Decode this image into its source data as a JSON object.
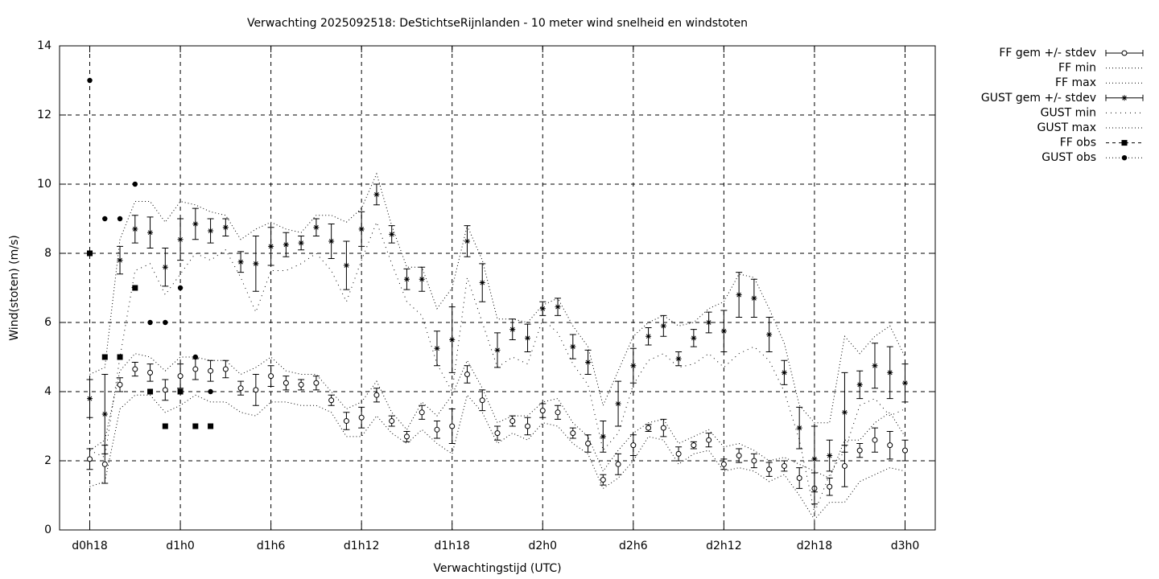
{
  "chart_data": {
    "type": "errorbar",
    "title": "Verwachting 2025092518: DeStichtseRijnlanden - 10 meter wind snelheid en windstoten",
    "x_label": "Verwachtingstijd (UTC)",
    "y_label": "Wind(stoten) (m/s)",
    "x": [
      18,
      19,
      20,
      21,
      22,
      23,
      24,
      25,
      26,
      27,
      28,
      29,
      30,
      31,
      32,
      33,
      34,
      35,
      36,
      37,
      38,
      39,
      40,
      41,
      42,
      43,
      44,
      45,
      46,
      47,
      48,
      49,
      50,
      51,
      52,
      53,
      54,
      55,
      56,
      57,
      58,
      59,
      60,
      61,
      62,
      63,
      64,
      65,
      66,
      67,
      68,
      69,
      70,
      71,
      72
    ],
    "xlim": [
      16,
      74
    ],
    "xticks": [
      {
        "value": 18,
        "label": "d0h18"
      },
      {
        "value": 24,
        "label": "d1h0"
      },
      {
        "value": 30,
        "label": "d1h6"
      },
      {
        "value": 36,
        "label": "d1h12"
      },
      {
        "value": 42,
        "label": "d1h18"
      },
      {
        "value": 48,
        "label": "d2h0"
      },
      {
        "value": 54,
        "label": "d2h6"
      },
      {
        "value": 60,
        "label": "d2h12"
      },
      {
        "value": 66,
        "label": "d2h18"
      },
      {
        "value": 72,
        "label": "d3h0"
      }
    ],
    "ylim": [
      0,
      14
    ],
    "yticks": [
      0,
      2,
      4,
      6,
      8,
      10,
      12,
      14
    ],
    "grid": true,
    "legend": "outside-top-right",
    "series": [
      {
        "name": "FF gem +/- stdev",
        "color": "#000000",
        "marker": "circle",
        "values": [
          2.05,
          1.9,
          4.2,
          4.65,
          4.55,
          4.05,
          4.45,
          4.65,
          4.6,
          4.65,
          4.1,
          4.05,
          4.45,
          4.25,
          4.2,
          4.25,
          3.75,
          3.15,
          3.25,
          3.9,
          3.15,
          2.7,
          3.4,
          2.9,
          3.0,
          4.5,
          3.75,
          2.8,
          3.15,
          3.0,
          3.45,
          3.4,
          2.8,
          2.5,
          1.45,
          1.9,
          2.45,
          2.95,
          2.95,
          2.2,
          2.45,
          2.6,
          1.9,
          2.15,
          2.0,
          1.75,
          1.85,
          1.5,
          1.2,
          1.25,
          1.85,
          2.3,
          2.6,
          2.45,
          2.3
        ],
        "errors": [
          0.3,
          0.55,
          0.2,
          0.2,
          0.25,
          0.3,
          0.35,
          0.3,
          0.3,
          0.25,
          0.2,
          0.45,
          0.3,
          0.2,
          0.15,
          0.2,
          0.15,
          0.25,
          0.3,
          0.2,
          0.15,
          0.15,
          0.2,
          0.25,
          0.5,
          0.25,
          0.3,
          0.2,
          0.15,
          0.25,
          0.2,
          0.2,
          0.15,
          0.25,
          0.15,
          0.3,
          0.3,
          0.1,
          0.25,
          0.2,
          0.1,
          0.2,
          0.15,
          0.2,
          0.2,
          0.2,
          0.15,
          0.3,
          0.45,
          0.25,
          0.6,
          0.2,
          0.35,
          0.4,
          0.3
        ]
      },
      {
        "name": "FF min",
        "color": "#000000",
        "dash": "1,3",
        "values": [
          1.25,
          1.4,
          3.5,
          3.9,
          3.9,
          3.4,
          3.6,
          3.9,
          3.7,
          3.7,
          3.4,
          3.3,
          3.7,
          3.7,
          3.6,
          3.6,
          3.4,
          2.7,
          2.7,
          3.3,
          2.8,
          2.5,
          2.9,
          2.5,
          2.2,
          3.9,
          3.4,
          2.5,
          2.8,
          2.6,
          3.1,
          3.0,
          2.5,
          2.2,
          1.2,
          1.5,
          2.0,
          2.7,
          2.6,
          1.9,
          2.2,
          2.3,
          1.7,
          1.8,
          1.7,
          1.4,
          1.6,
          1.0,
          0.3,
          0.8,
          0.8,
          1.4,
          1.6,
          1.8,
          1.7
        ]
      },
      {
        "name": "FF max",
        "color": "#000000",
        "dash": "1,3",
        "values": [
          2.3,
          2.6,
          4.6,
          5.1,
          5.0,
          4.6,
          5.0,
          5.0,
          4.9,
          4.9,
          4.5,
          4.7,
          5.0,
          4.6,
          4.5,
          4.5,
          4.0,
          3.5,
          3.7,
          4.3,
          3.4,
          2.9,
          3.7,
          3.3,
          3.9,
          4.9,
          4.1,
          3.1,
          3.3,
          3.3,
          3.7,
          3.8,
          3.1,
          2.7,
          1.7,
          2.3,
          2.8,
          3.1,
          3.2,
          2.5,
          2.7,
          2.9,
          2.4,
          2.5,
          2.3,
          2.0,
          2.1,
          1.9,
          1.7,
          1.5,
          2.6,
          2.6,
          3.1,
          3.4,
          2.7
        ]
      },
      {
        "name": "GUST gem +/- stdev",
        "color": "#000000",
        "marker": "star",
        "values": [
          3.8,
          3.35,
          7.8,
          8.7,
          8.6,
          7.6,
          8.4,
          8.85,
          8.65,
          8.75,
          7.75,
          7.7,
          8.2,
          8.25,
          8.3,
          8.75,
          8.35,
          7.65,
          8.7,
          9.7,
          8.55,
          7.25,
          7.25,
          5.25,
          5.5,
          8.35,
          7.15,
          5.2,
          5.8,
          5.55,
          6.4,
          6.45,
          5.3,
          4.85,
          2.7,
          3.65,
          4.75,
          5.6,
          5.9,
          4.95,
          5.55,
          6.0,
          5.75,
          6.8,
          6.7,
          5.65,
          4.55,
          2.95,
          2.05,
          2.15,
          3.4,
          4.2,
          4.75,
          4.55,
          4.25
        ],
        "errors": [
          0.55,
          1.15,
          0.4,
          0.4,
          0.45,
          0.55,
          0.6,
          0.45,
          0.35,
          0.25,
          0.3,
          0.8,
          0.55,
          0.35,
          0.2,
          0.25,
          0.5,
          0.7,
          0.5,
          0.3,
          0.25,
          0.3,
          0.35,
          0.5,
          0.95,
          0.45,
          0.55,
          0.5,
          0.3,
          0.4,
          0.2,
          0.25,
          0.35,
          0.35,
          0.45,
          0.65,
          0.5,
          0.25,
          0.3,
          0.2,
          0.25,
          0.3,
          0.6,
          0.65,
          0.55,
          0.5,
          0.35,
          0.6,
          0.95,
          0.45,
          1.15,
          0.4,
          0.65,
          0.75,
          0.55
        ]
      },
      {
        "name": "GUST min",
        "color": "#000000",
        "dash": "1,5",
        "values": [
          2.3,
          2.1,
          5.0,
          7.5,
          7.7,
          6.8,
          7.4,
          8.0,
          7.8,
          8.1,
          7.3,
          6.3,
          7.5,
          7.5,
          7.7,
          8.0,
          7.5,
          6.6,
          7.8,
          8.9,
          7.7,
          6.6,
          6.2,
          4.8,
          4.0,
          7.3,
          6.0,
          4.7,
          5.0,
          4.8,
          6.1,
          5.7,
          4.8,
          4.2,
          2.3,
          2.8,
          4.2,
          4.9,
          5.1,
          4.7,
          4.8,
          5.1,
          4.7,
          5.1,
          5.3,
          4.9,
          4.0,
          2.6,
          0.5,
          1.6,
          2.3,
          3.6,
          3.8,
          3.3,
          3.5
        ]
      },
      {
        "name": "GUST max",
        "color": "#000000",
        "dash": "1,3",
        "values": [
          4.5,
          4.7,
          8.4,
          9.5,
          9.5,
          8.9,
          9.5,
          9.4,
          9.2,
          9.1,
          8.4,
          8.7,
          8.9,
          8.7,
          8.6,
          9.1,
          9.1,
          8.9,
          9.3,
          10.3,
          8.8,
          7.6,
          7.6,
          6.4,
          7.0,
          8.8,
          7.8,
          6.1,
          6.1,
          6.0,
          6.5,
          6.7,
          5.9,
          5.3,
          3.6,
          4.6,
          5.6,
          6.0,
          6.2,
          5.9,
          6.0,
          6.4,
          6.6,
          7.4,
          7.3,
          6.4,
          5.4,
          3.6,
          3.1,
          3.1,
          5.6,
          5.1,
          5.6,
          5.9,
          5.0
        ]
      },
      {
        "name": "FF obs",
        "color": "#000000",
        "marker": "square",
        "dash": "4,4",
        "x": [
          18,
          19,
          20,
          21,
          22,
          23,
          24,
          25,
          26
        ],
        "values": [
          8,
          5,
          5,
          7,
          4,
          3,
          4,
          3,
          3
        ]
      },
      {
        "name": "GUST obs",
        "color": "#000000",
        "marker": "dot",
        "dash": "1,3",
        "x": [
          18,
          19,
          20,
          21,
          22,
          23,
          24,
          25,
          26
        ],
        "values": [
          13,
          9,
          9,
          10,
          6,
          6,
          7,
          5,
          4
        ]
      }
    ]
  }
}
